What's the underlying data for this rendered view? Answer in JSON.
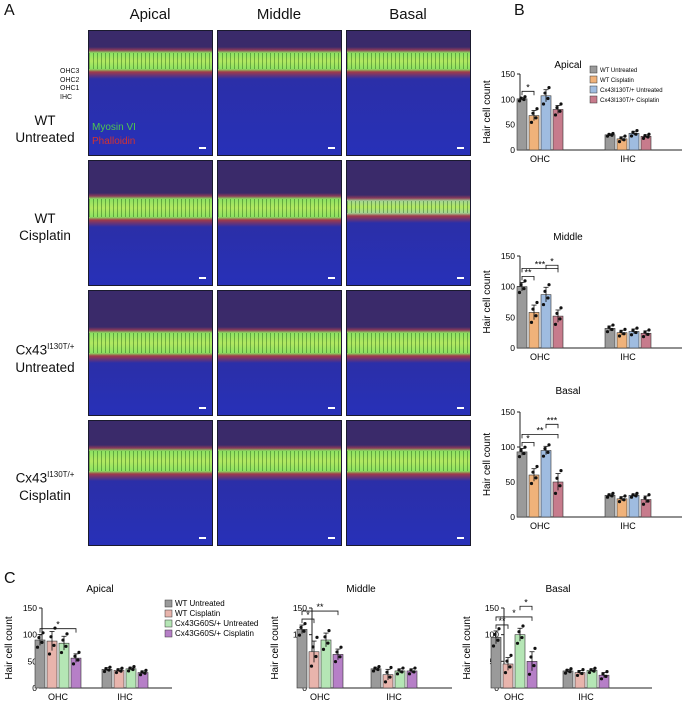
{
  "panels": {
    "A": "A",
    "B": "B",
    "C": "C"
  },
  "panelA": {
    "columns": [
      "Apical",
      "Middle",
      "Basal"
    ],
    "rows": [
      {
        "line1": "WT",
        "line2": "Untreated"
      },
      {
        "line1": "WT",
        "line2": "Cisplatin"
      },
      {
        "line1": "Cx43",
        "sup": "I130T/+",
        "line2": "Untreated"
      },
      {
        "line1": "Cx43",
        "sup": "I130T/+",
        "line2": "Cisplatin"
      }
    ],
    "layer_labels": [
      "OHC3",
      "OHC2",
      "OHC1",
      "IHC"
    ],
    "stain_labels": {
      "myosin": "Myosin VI",
      "phalloidin": "Phalloidin"
    }
  },
  "colors": {
    "wt_untreated": "#9a9a9a",
    "wt_cisplatin": "#f0b27a",
    "cx43_i130t_untreated": "#9fbce0",
    "cx43_i130t_cisplatin": "#c77b8c",
    "c_wt_untreated": "#9a9a9a",
    "c_wt_cisplatin": "#e8b4ac",
    "c_g60s_untreated": "#b5e6b5",
    "c_g60s_cisplatin": "#b67fc7"
  },
  "chart_data": [
    {
      "id": "B-apical",
      "type": "bar",
      "title": "Apical",
      "ylabel": "Hair cell count",
      "ylim": [
        0,
        150
      ],
      "yticks": [
        0,
        50,
        100,
        150
      ],
      "categories": [
        "OHC",
        "IHC"
      ],
      "legend": [
        "WT Untreated",
        "WT Cisplatin",
        "Cx43I130T/+ Untreated",
        "Cx43I130T/+ Cisplatin"
      ],
      "legend_sup": [
        "",
        "",
        "I130T/+",
        "I130T/+"
      ],
      "series": [
        {
          "name": "WT Untreated",
          "values": [
            101,
            30
          ],
          "err": [
            3,
            2
          ]
        },
        {
          "name": "WT Cisplatin",
          "values": [
            68,
            22
          ],
          "err": [
            10,
            4
          ]
        },
        {
          "name": "Cx43I130T/+ Untreated",
          "values": [
            107,
            33
          ],
          "err": [
            12,
            4
          ]
        },
        {
          "name": "Cx43I130T/+ Cisplatin",
          "values": [
            80,
            27
          ],
          "err": [
            8,
            3
          ]
        }
      ],
      "significance": [
        {
          "from": 0,
          "to": 1,
          "label": "*"
        }
      ]
    },
    {
      "id": "B-middle",
      "type": "bar",
      "title": "Middle",
      "ylabel": "Hair cell count",
      "ylim": [
        0,
        150
      ],
      "yticks": [
        0,
        50,
        100,
        150
      ],
      "categories": [
        "OHC",
        "IHC"
      ],
      "series": [
        {
          "name": "WT Untreated",
          "values": [
            100,
            32
          ],
          "err": [
            7,
            4
          ]
        },
        {
          "name": "WT Cisplatin",
          "values": [
            58,
            25
          ],
          "err": [
            12,
            4
          ]
        },
        {
          "name": "Cx43I130T/+ Untreated",
          "values": [
            87,
            27
          ],
          "err": [
            12,
            4
          ]
        },
        {
          "name": "Cx43I130T/+ Cisplatin",
          "values": [
            52,
            24
          ],
          "err": [
            10,
            4
          ]
        }
      ],
      "significance": [
        {
          "from": 0,
          "to": 1,
          "label": "**"
        },
        {
          "from": 0,
          "to": 3,
          "label": "***"
        },
        {
          "from": 2,
          "to": 3,
          "label": "*"
        }
      ]
    },
    {
      "id": "B-basal",
      "type": "bar",
      "title": "Basal",
      "ylabel": "Hair cell count",
      "ylim": [
        0,
        150
      ],
      "yticks": [
        0,
        50,
        100,
        150
      ],
      "categories": [
        "OHC",
        "IHC"
      ],
      "series": [
        {
          "name": "WT Untreated",
          "values": [
            93,
            31
          ],
          "err": [
            5,
            2
          ]
        },
        {
          "name": "WT Cisplatin",
          "values": [
            60,
            26
          ],
          "err": [
            9,
            3
          ]
        },
        {
          "name": "Cx43I130T/+ Untreated",
          "values": [
            95,
            31
          ],
          "err": [
            6,
            2
          ]
        },
        {
          "name": "Cx43I130T/+ Cisplatin",
          "values": [
            50,
            25
          ],
          "err": [
            12,
            5
          ]
        }
      ],
      "significance": [
        {
          "from": 0,
          "to": 1,
          "label": "*"
        },
        {
          "from": 0,
          "to": 3,
          "label": "**"
        },
        {
          "from": 2,
          "to": 3,
          "label": "***"
        }
      ]
    },
    {
      "id": "C-apical",
      "type": "bar",
      "title": "Apical",
      "ylabel": "Hair cell count",
      "ylim": [
        0,
        150
      ],
      "yticks": [
        0,
        50,
        100,
        150
      ],
      "categories": [
        "OHC",
        "IHC"
      ],
      "legend": [
        "WT Untreated",
        "WT Cisplatin",
        "Cx43G60S/+ Untreated",
        "Cx43G60S/+ Cisplatin"
      ],
      "legend_sup": [
        "",
        "",
        "G60S/+",
        "G60S/+"
      ],
      "series": [
        {
          "name": "WT Untreated",
          "values": [
            90,
            35
          ],
          "err": [
            10,
            3
          ]
        },
        {
          "name": "WT Cisplatin",
          "values": [
            88,
            33
          ],
          "err": [
            18,
            3
          ]
        },
        {
          "name": "Cx43G60S/+ Untreated",
          "values": [
            84,
            36
          ],
          "err": [
            13,
            3
          ]
        },
        {
          "name": "Cx43G60S/+ Cisplatin",
          "values": [
            56,
            29
          ],
          "err": [
            8,
            3
          ]
        }
      ],
      "significance": [
        {
          "from": 0,
          "to": 3,
          "label": "*"
        }
      ]
    },
    {
      "id": "C-middle",
      "type": "bar",
      "title": "Middle",
      "ylabel": "Hair cell count",
      "ylim": [
        0,
        150
      ],
      "yticks": [
        0,
        50,
        100,
        150
      ],
      "categories": [
        "OHC",
        "IHC"
      ],
      "series": [
        {
          "name": "WT Untreated",
          "values": [
            110,
            36
          ],
          "err": [
            8,
            3
          ]
        },
        {
          "name": "WT Cisplatin",
          "values": [
            68,
            25
          ],
          "err": [
            20,
            10
          ]
        },
        {
          "name": "Cx43G60S/+ Untreated",
          "values": [
            90,
            32
          ],
          "err": [
            13,
            4
          ]
        },
        {
          "name": "Cx43G60S/+ Cisplatin",
          "values": [
            63,
            32
          ],
          "err": [
            10,
            4
          ]
        }
      ],
      "significance": [
        {
          "from": 0,
          "to": 1,
          "label": "*"
        },
        {
          "from": 0,
          "to": 3,
          "label": "**"
        }
      ]
    },
    {
      "id": "C-basal",
      "type": "bar",
      "title": "Basal",
      "ylabel": "Hair cell count",
      "ylim": [
        0,
        150
      ],
      "yticks": [
        0,
        50,
        100,
        150
      ],
      "categories": [
        "OHC",
        "IHC"
      ],
      "series": [
        {
          "name": "WT Untreated",
          "values": [
            95,
            32
          ],
          "err": [
            12,
            3
          ]
        },
        {
          "name": "WT Cisplatin",
          "values": [
            45,
            29
          ],
          "err": [
            12,
            4
          ]
        },
        {
          "name": "Cx43G60S/+ Untreated",
          "values": [
            100,
            33
          ],
          "err": [
            12,
            3
          ]
        },
        {
          "name": "Cx43G60S/+ Cisplatin",
          "values": [
            50,
            24
          ],
          "err": [
            18,
            5
          ]
        }
      ],
      "significance": [
        {
          "from": 0,
          "to": 1,
          "label": "**"
        },
        {
          "from": 0,
          "to": 3,
          "label": "*"
        },
        {
          "from": 2,
          "to": 3,
          "label": "*"
        }
      ]
    }
  ]
}
